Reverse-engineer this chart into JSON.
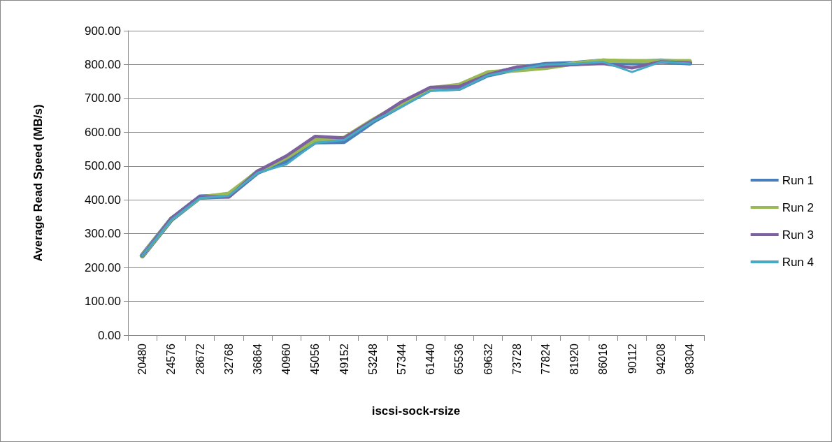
{
  "chart_data": {
    "type": "line",
    "xlabel": "iscsi-sock-rsize",
    "ylabel": "Average Read Speed (MB/s)",
    "categories": [
      "20480",
      "24576",
      "28672",
      "32768",
      "36864",
      "40960",
      "45056",
      "49152",
      "53248",
      "57344",
      "61440",
      "65536",
      "69632",
      "73728",
      "77824",
      "81920",
      "86016",
      "90112",
      "94208",
      "98304"
    ],
    "series": [
      {
        "name": "Run 1",
        "color": "#4a7ebb",
        "values": [
          235,
          342,
          408,
          412,
          482,
          515,
          572,
          573,
          632,
          680,
          727,
          730,
          770,
          788,
          800,
          803,
          810,
          805,
          810,
          805
        ]
      },
      {
        "name": "Run 2",
        "color": "#98b954",
        "values": [
          235,
          343,
          407,
          418,
          483,
          525,
          578,
          583,
          636,
          685,
          730,
          740,
          777,
          783,
          790,
          803,
          812,
          810,
          810,
          810
        ]
      },
      {
        "name": "Run 3",
        "color": "#7d60a0",
        "values": [
          235,
          345,
          410,
          408,
          485,
          530,
          588,
          583,
          635,
          690,
          733,
          735,
          770,
          793,
          795,
          800,
          803,
          790,
          808,
          805
        ]
      },
      {
        "name": "Run 4",
        "color": "#46aac5",
        "values": [
          235,
          340,
          405,
          412,
          480,
          505,
          568,
          577,
          632,
          675,
          722,
          726,
          768,
          785,
          800,
          802,
          808,
          778,
          808,
          803
        ]
      }
    ],
    "ylim": [
      0,
      900
    ],
    "yticks": [
      {
        "value": 0,
        "label": "0.00"
      },
      {
        "value": 100,
        "label": "100.00"
      },
      {
        "value": 200,
        "label": "200.00"
      },
      {
        "value": 300,
        "label": "300.00"
      },
      {
        "value": 400,
        "label": "400.00"
      },
      {
        "value": 500,
        "label": "500.00"
      },
      {
        "value": 600,
        "label": "600.00"
      },
      {
        "value": 700,
        "label": "700.00"
      },
      {
        "value": 800,
        "label": "800.00"
      },
      {
        "value": 900,
        "label": "900.00"
      }
    ],
    "grid": "y",
    "legend": "right",
    "marker": "none",
    "line_style": "solid"
  }
}
